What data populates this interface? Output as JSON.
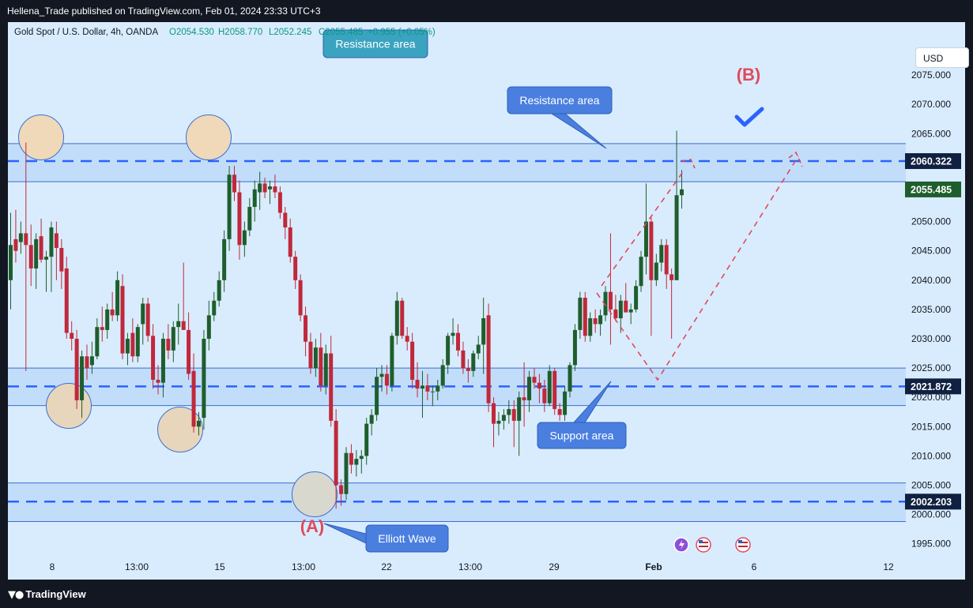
{
  "header": {
    "publisher": "Hellena_Trade published on TradingView.com, Feb 01, 2024 23:33 UTC+3",
    "symbol": "Gold Spot / U.S. Dollar, 4h, OANDA",
    "ohlc": [
      "O2054.530",
      "H2058.770",
      "L2052.245",
      "C2055.485",
      "+0.955 (+0.05%)"
    ],
    "currency": "USD"
  },
  "footer": {
    "brand": "TradingView"
  },
  "colors": {
    "up": "#1e5e2d",
    "down": "#c0283b",
    "zone_fill": "#bcd9f7",
    "zone_line": "#3c6fd0",
    "dash": "#2962ff",
    "projection": "#e04a5c",
    "callout": "#4a7fe0",
    "teal_callout": "#3aa3c0",
    "circle_fill": "#efd9b9",
    "price_tag": "#102040",
    "last_tag": "#1e5e2d"
  },
  "chart_data": {
    "type": "candlestick",
    "symbol": "Gold Spot / U.S. Dollar",
    "timeframe": "4h",
    "ylim": [
      1992,
      2080
    ],
    "y_ticks": [
      2075,
      2070,
      2065,
      2060,
      2055,
      2050,
      2045,
      2040,
      2035,
      2030,
      2025,
      2020,
      2015,
      2010,
      2005,
      2000,
      1995
    ],
    "y_tick_labels": [
      "2075.000",
      "2070.000",
      "2065.000",
      "2060.000",
      "2055.000",
      "2050.000",
      "2045.000",
      "2040.000",
      "2035.000",
      "2030.000",
      "2025.000",
      "2020.000",
      "2015.000",
      "2010.000",
      "2005.000",
      "2000.000",
      "1995.000"
    ],
    "x_labels": [
      "8",
      "13:00",
      "15",
      "13:00",
      "22",
      "13:00",
      "29",
      "Feb",
      "6",
      "12"
    ],
    "price_labels": [
      {
        "value": 2060.322,
        "label": "2060.322"
      },
      {
        "value": 2055.485,
        "label": "2055.485",
        "kind": "last"
      },
      {
        "value": 2021.872,
        "label": "2021.872"
      },
      {
        "value": 2002.203,
        "label": "2002.203"
      }
    ],
    "zones": [
      {
        "name": "resistance",
        "top": 2063.3,
        "bottom": 2056.8,
        "level": 2060.322
      },
      {
        "name": "support",
        "top": 2025.0,
        "bottom": 2018.6,
        "level": 2021.872
      },
      {
        "name": "bottom",
        "top": 2005.4,
        "bottom": 1998.8,
        "level": 2002.203
      }
    ],
    "candles": [
      {
        "o": 2040.0,
        "h": 2051.5,
        "l": 2035.0,
        "c": 2046.0
      },
      {
        "o": 2047.0,
        "h": 2052.0,
        "l": 2043.0,
        "c": 2045.0
      },
      {
        "o": 2046.5,
        "h": 2050.0,
        "l": 2044.5,
        "c": 2048.0
      },
      {
        "o": 2048.0,
        "h": 2063.5,
        "l": 2024.5,
        "c": 2046.0
      },
      {
        "o": 2046.0,
        "h": 2049.5,
        "l": 2039.0,
        "c": 2042.0
      },
      {
        "o": 2042.0,
        "h": 2048.0,
        "l": 2038.5,
        "c": 2047.0
      },
      {
        "o": 2047.5,
        "h": 2050.5,
        "l": 2043.0,
        "c": 2043.5
      },
      {
        "o": 2043.5,
        "h": 2045.0,
        "l": 2038.0,
        "c": 2044.0
      },
      {
        "o": 2044.0,
        "h": 2050.0,
        "l": 2038.0,
        "c": 2049.0
      },
      {
        "o": 2048.0,
        "h": 2050.0,
        "l": 2040.0,
        "c": 2045.5
      },
      {
        "o": 2045.5,
        "h": 2047.0,
        "l": 2038.5,
        "c": 2041.5
      },
      {
        "o": 2042.0,
        "h": 2044.0,
        "l": 2030.0,
        "c": 2031.0
      },
      {
        "o": 2031.0,
        "h": 2033.0,
        "l": 2028.0,
        "c": 2030.0
      },
      {
        "o": 2030.0,
        "h": 2031.5,
        "l": 2018.0,
        "c": 2019.5
      },
      {
        "o": 2019.5,
        "h": 2028.0,
        "l": 2016.5,
        "c": 2027.0
      },
      {
        "o": 2027.0,
        "h": 2029.0,
        "l": 2023.0,
        "c": 2025.0
      },
      {
        "o": 2025.5,
        "h": 2029.5,
        "l": 2024.0,
        "c": 2027.0
      },
      {
        "o": 2027.0,
        "h": 2033.5,
        "l": 2026.5,
        "c": 2032.0
      },
      {
        "o": 2032.0,
        "h": 2035.5,
        "l": 2029.5,
        "c": 2031.5
      },
      {
        "o": 2031.5,
        "h": 2036.0,
        "l": 2030.0,
        "c": 2035.0
      },
      {
        "o": 2035.0,
        "h": 2038.0,
        "l": 2033.0,
        "c": 2034.0
      },
      {
        "o": 2034.0,
        "h": 2041.5,
        "l": 2033.0,
        "c": 2040.0
      },
      {
        "o": 2039.0,
        "h": 2041.0,
        "l": 2026.5,
        "c": 2027.5
      },
      {
        "o": 2027.5,
        "h": 2031.0,
        "l": 2025.5,
        "c": 2030.0
      },
      {
        "o": 2031.0,
        "h": 2033.5,
        "l": 2026.0,
        "c": 2027.0
      },
      {
        "o": 2027.0,
        "h": 2032.5,
        "l": 2026.0,
        "c": 2032.0
      },
      {
        "o": 2032.5,
        "h": 2037.0,
        "l": 2029.0,
        "c": 2036.0
      },
      {
        "o": 2036.0,
        "h": 2037.0,
        "l": 2029.5,
        "c": 2030.5
      },
      {
        "o": 2030.5,
        "h": 2032.5,
        "l": 2021.5,
        "c": 2023.0
      },
      {
        "o": 2023.0,
        "h": 2025.5,
        "l": 2020.5,
        "c": 2022.5
      },
      {
        "o": 2022.5,
        "h": 2031.0,
        "l": 2020.0,
        "c": 2030.0
      },
      {
        "o": 2030.0,
        "h": 2032.5,
        "l": 2026.5,
        "c": 2028.0
      },
      {
        "o": 2028.0,
        "h": 2033.0,
        "l": 2026.0,
        "c": 2032.0
      },
      {
        "o": 2032.0,
        "h": 2036.0,
        "l": 2029.0,
        "c": 2033.0
      },
      {
        "o": 2033.0,
        "h": 2043.0,
        "l": 2031.5,
        "c": 2031.5
      },
      {
        "o": 2031.5,
        "h": 2034.5,
        "l": 2023.0,
        "c": 2024.0
      },
      {
        "o": 2024.5,
        "h": 2027.5,
        "l": 2014.0,
        "c": 2015.0
      },
      {
        "o": 2015.0,
        "h": 2017.5,
        "l": 2013.5,
        "c": 2016.0
      },
      {
        "o": 2016.5,
        "h": 2031.5,
        "l": 2014.5,
        "c": 2030.0
      },
      {
        "o": 2030.0,
        "h": 2036.5,
        "l": 2028.0,
        "c": 2034.0
      },
      {
        "o": 2034.0,
        "h": 2038.0,
        "l": 2033.0,
        "c": 2036.5
      },
      {
        "o": 2036.5,
        "h": 2041.5,
        "l": 2035.5,
        "c": 2040.0
      },
      {
        "o": 2040.0,
        "h": 2048.5,
        "l": 2038.0,
        "c": 2047.0
      },
      {
        "o": 2047.0,
        "h": 2059.5,
        "l": 2045.0,
        "c": 2058.0
      },
      {
        "o": 2058.0,
        "h": 2059.5,
        "l": 2053.5,
        "c": 2055.0
      },
      {
        "o": 2055.0,
        "h": 2057.0,
        "l": 2043.5,
        "c": 2046.0
      },
      {
        "o": 2046.0,
        "h": 2050.0,
        "l": 2044.0,
        "c": 2048.5
      },
      {
        "o": 2048.5,
        "h": 2054.0,
        "l": 2047.5,
        "c": 2052.5
      },
      {
        "o": 2052.5,
        "h": 2057.0,
        "l": 2050.0,
        "c": 2055.5
      },
      {
        "o": 2055.0,
        "h": 2058.5,
        "l": 2052.0,
        "c": 2056.5
      },
      {
        "o": 2056.5,
        "h": 2057.5,
        "l": 2054.0,
        "c": 2055.0
      },
      {
        "o": 2055.5,
        "h": 2057.0,
        "l": 2053.0,
        "c": 2056.0
      },
      {
        "o": 2056.0,
        "h": 2058.0,
        "l": 2054.0,
        "c": 2055.0
      },
      {
        "o": 2055.0,
        "h": 2056.0,
        "l": 2050.5,
        "c": 2051.5
      },
      {
        "o": 2051.5,
        "h": 2052.5,
        "l": 2047.0,
        "c": 2049.0
      },
      {
        "o": 2049.0,
        "h": 2050.5,
        "l": 2043.0,
        "c": 2044.0
      },
      {
        "o": 2044.0,
        "h": 2045.0,
        "l": 2038.5,
        "c": 2040.0
      },
      {
        "o": 2040.0,
        "h": 2041.0,
        "l": 2033.0,
        "c": 2034.0
      },
      {
        "o": 2034.0,
        "h": 2035.5,
        "l": 2027.0,
        "c": 2029.5
      },
      {
        "o": 2029.5,
        "h": 2031.0,
        "l": 2024.0,
        "c": 2025.0
      },
      {
        "o": 2025.0,
        "h": 2030.0,
        "l": 2023.5,
        "c": 2028.5
      },
      {
        "o": 2028.5,
        "h": 2031.0,
        "l": 2021.0,
        "c": 2022.0
      },
      {
        "o": 2022.0,
        "h": 2029.0,
        "l": 2020.5,
        "c": 2027.5
      },
      {
        "o": 2027.5,
        "h": 2030.5,
        "l": 2015.0,
        "c": 2016.0
      },
      {
        "o": 2016.0,
        "h": 2018.0,
        "l": 2001.0,
        "c": 2005.0
      },
      {
        "o": 2005.0,
        "h": 2006.0,
        "l": 2001.5,
        "c": 2003.5
      },
      {
        "o": 2003.5,
        "h": 2011.5,
        "l": 2002.5,
        "c": 2010.5
      },
      {
        "o": 2010.5,
        "h": 2012.0,
        "l": 2007.0,
        "c": 2008.5
      },
      {
        "o": 2008.5,
        "h": 2011.0,
        "l": 2006.5,
        "c": 2009.5
      },
      {
        "o": 2009.5,
        "h": 2011.0,
        "l": 2007.0,
        "c": 2010.0
      },
      {
        "o": 2010.0,
        "h": 2016.5,
        "l": 2008.5,
        "c": 2015.5
      },
      {
        "o": 2015.5,
        "h": 2018.0,
        "l": 2013.5,
        "c": 2017.0
      },
      {
        "o": 2017.0,
        "h": 2025.0,
        "l": 2016.0,
        "c": 2023.5
      },
      {
        "o": 2023.5,
        "h": 2025.5,
        "l": 2021.0,
        "c": 2024.0
      },
      {
        "o": 2024.0,
        "h": 2025.5,
        "l": 2020.5,
        "c": 2022.0
      },
      {
        "o": 2022.0,
        "h": 2031.0,
        "l": 2021.0,
        "c": 2030.5
      },
      {
        "o": 2030.5,
        "h": 2038.0,
        "l": 2029.0,
        "c": 2036.5
      },
      {
        "o": 2036.5,
        "h": 2037.0,
        "l": 2030.0,
        "c": 2030.5
      },
      {
        "o": 2030.5,
        "h": 2032.0,
        "l": 2028.0,
        "c": 2029.5
      },
      {
        "o": 2029.5,
        "h": 2031.0,
        "l": 2021.5,
        "c": 2023.0
      },
      {
        "o": 2023.0,
        "h": 2026.0,
        "l": 2020.0,
        "c": 2021.5
      },
      {
        "o": 2021.5,
        "h": 2024.5,
        "l": 2016.5,
        "c": 2022.0
      },
      {
        "o": 2022.0,
        "h": 2024.0,
        "l": 2019.5,
        "c": 2021.0
      },
      {
        "o": 2021.0,
        "h": 2022.0,
        "l": 2018.5,
        "c": 2021.0
      },
      {
        "o": 2021.0,
        "h": 2023.0,
        "l": 2019.5,
        "c": 2022.0
      },
      {
        "o": 2022.0,
        "h": 2026.5,
        "l": 2021.5,
        "c": 2025.5
      },
      {
        "o": 2025.5,
        "h": 2031.0,
        "l": 2024.0,
        "c": 2030.5
      },
      {
        "o": 2030.5,
        "h": 2033.5,
        "l": 2029.0,
        "c": 2031.0
      },
      {
        "o": 2031.0,
        "h": 2032.5,
        "l": 2027.0,
        "c": 2028.0
      },
      {
        "o": 2028.0,
        "h": 2029.5,
        "l": 2024.0,
        "c": 2025.0
      },
      {
        "o": 2025.0,
        "h": 2026.5,
        "l": 2022.5,
        "c": 2024.5
      },
      {
        "o": 2024.5,
        "h": 2028.0,
        "l": 2023.5,
        "c": 2027.5
      },
      {
        "o": 2027.5,
        "h": 2030.5,
        "l": 2026.5,
        "c": 2029.0
      },
      {
        "o": 2029.0,
        "h": 2037.0,
        "l": 2024.0,
        "c": 2033.5
      },
      {
        "o": 2034.0,
        "h": 2036.0,
        "l": 2017.5,
        "c": 2019.0
      },
      {
        "o": 2019.0,
        "h": 2020.0,
        "l": 2011.5,
        "c": 2015.5
      },
      {
        "o": 2015.5,
        "h": 2017.5,
        "l": 2013.5,
        "c": 2016.0
      },
      {
        "o": 2016.0,
        "h": 2018.0,
        "l": 2014.5,
        "c": 2017.0
      },
      {
        "o": 2017.0,
        "h": 2019.5,
        "l": 2015.5,
        "c": 2018.0
      },
      {
        "o": 2018.0,
        "h": 2019.5,
        "l": 2011.5,
        "c": 2016.0
      },
      {
        "o": 2016.0,
        "h": 2021.0,
        "l": 2010.0,
        "c": 2020.0
      },
      {
        "o": 2020.0,
        "h": 2026.0,
        "l": 2015.0,
        "c": 2019.5
      },
      {
        "o": 2019.5,
        "h": 2024.5,
        "l": 2017.5,
        "c": 2023.5
      },
      {
        "o": 2023.5,
        "h": 2025.0,
        "l": 2021.5,
        "c": 2022.5
      },
      {
        "o": 2022.5,
        "h": 2024.0,
        "l": 2019.0,
        "c": 2021.5
      },
      {
        "o": 2021.5,
        "h": 2023.0,
        "l": 2017.5,
        "c": 2019.0
      },
      {
        "o": 2019.0,
        "h": 2025.5,
        "l": 2018.5,
        "c": 2024.5
      },
      {
        "o": 2024.5,
        "h": 2025.0,
        "l": 2017.0,
        "c": 2018.0
      },
      {
        "o": 2018.0,
        "h": 2019.0,
        "l": 2016.0,
        "c": 2017.0
      },
      {
        "o": 2017.0,
        "h": 2022.0,
        "l": 2016.0,
        "c": 2021.0
      },
      {
        "o": 2021.0,
        "h": 2026.0,
        "l": 2020.0,
        "c": 2025.5
      },
      {
        "o": 2025.5,
        "h": 2032.5,
        "l": 2024.5,
        "c": 2031.5
      },
      {
        "o": 2031.5,
        "h": 2038.0,
        "l": 2030.0,
        "c": 2037.0
      },
      {
        "o": 2037.0,
        "h": 2038.0,
        "l": 2029.5,
        "c": 2030.5
      },
      {
        "o": 2030.5,
        "h": 2034.5,
        "l": 2029.5,
        "c": 2033.5
      },
      {
        "o": 2033.5,
        "h": 2035.0,
        "l": 2031.0,
        "c": 2032.5
      },
      {
        "o": 2032.5,
        "h": 2035.0,
        "l": 2030.5,
        "c": 2034.0
      },
      {
        "o": 2034.0,
        "h": 2039.0,
        "l": 2033.0,
        "c": 2038.0
      },
      {
        "o": 2038.0,
        "h": 2048.0,
        "l": 2029.0,
        "c": 2035.0
      },
      {
        "o": 2035.0,
        "h": 2037.5,
        "l": 2033.0,
        "c": 2033.5
      },
      {
        "o": 2033.5,
        "h": 2037.5,
        "l": 2031.0,
        "c": 2036.5
      },
      {
        "o": 2036.5,
        "h": 2039.5,
        "l": 2035.0,
        "c": 2034.5
      },
      {
        "o": 2034.5,
        "h": 2036.0,
        "l": 2032.5,
        "c": 2035.0
      },
      {
        "o": 2035.0,
        "h": 2040.0,
        "l": 2034.5,
        "c": 2039.0
      },
      {
        "o": 2039.0,
        "h": 2045.0,
        "l": 2038.0,
        "c": 2044.0
      },
      {
        "o": 2044.0,
        "h": 2056.5,
        "l": 2041.0,
        "c": 2050.0
      },
      {
        "o": 2050.0,
        "h": 2051.0,
        "l": 2030.5,
        "c": 2040.0
      },
      {
        "o": 2040.0,
        "h": 2044.5,
        "l": 2039.0,
        "c": 2043.0
      },
      {
        "o": 2043.0,
        "h": 2047.0,
        "l": 2041.5,
        "c": 2046.0
      },
      {
        "o": 2046.0,
        "h": 2047.0,
        "l": 2038.5,
        "c": 2041.0
      },
      {
        "o": 2041.0,
        "h": 2042.0,
        "l": 2030.0,
        "c": 2040.0
      },
      {
        "o": 2040.0,
        "h": 2065.5,
        "l": 2040.0,
        "c": 2054.5
      },
      {
        "o": 2054.5,
        "h": 2058.8,
        "l": 2052.2,
        "c": 2055.5
      }
    ]
  },
  "annotations": {
    "resistance_top_label": "Resistance area",
    "resistance_label": "Resistance area",
    "support_label": "Support area",
    "elliott_label": "Elliott Wave",
    "wave_a": "(A)",
    "wave_b": "(B)",
    "checkmark_icon": "checkmark-icon"
  }
}
